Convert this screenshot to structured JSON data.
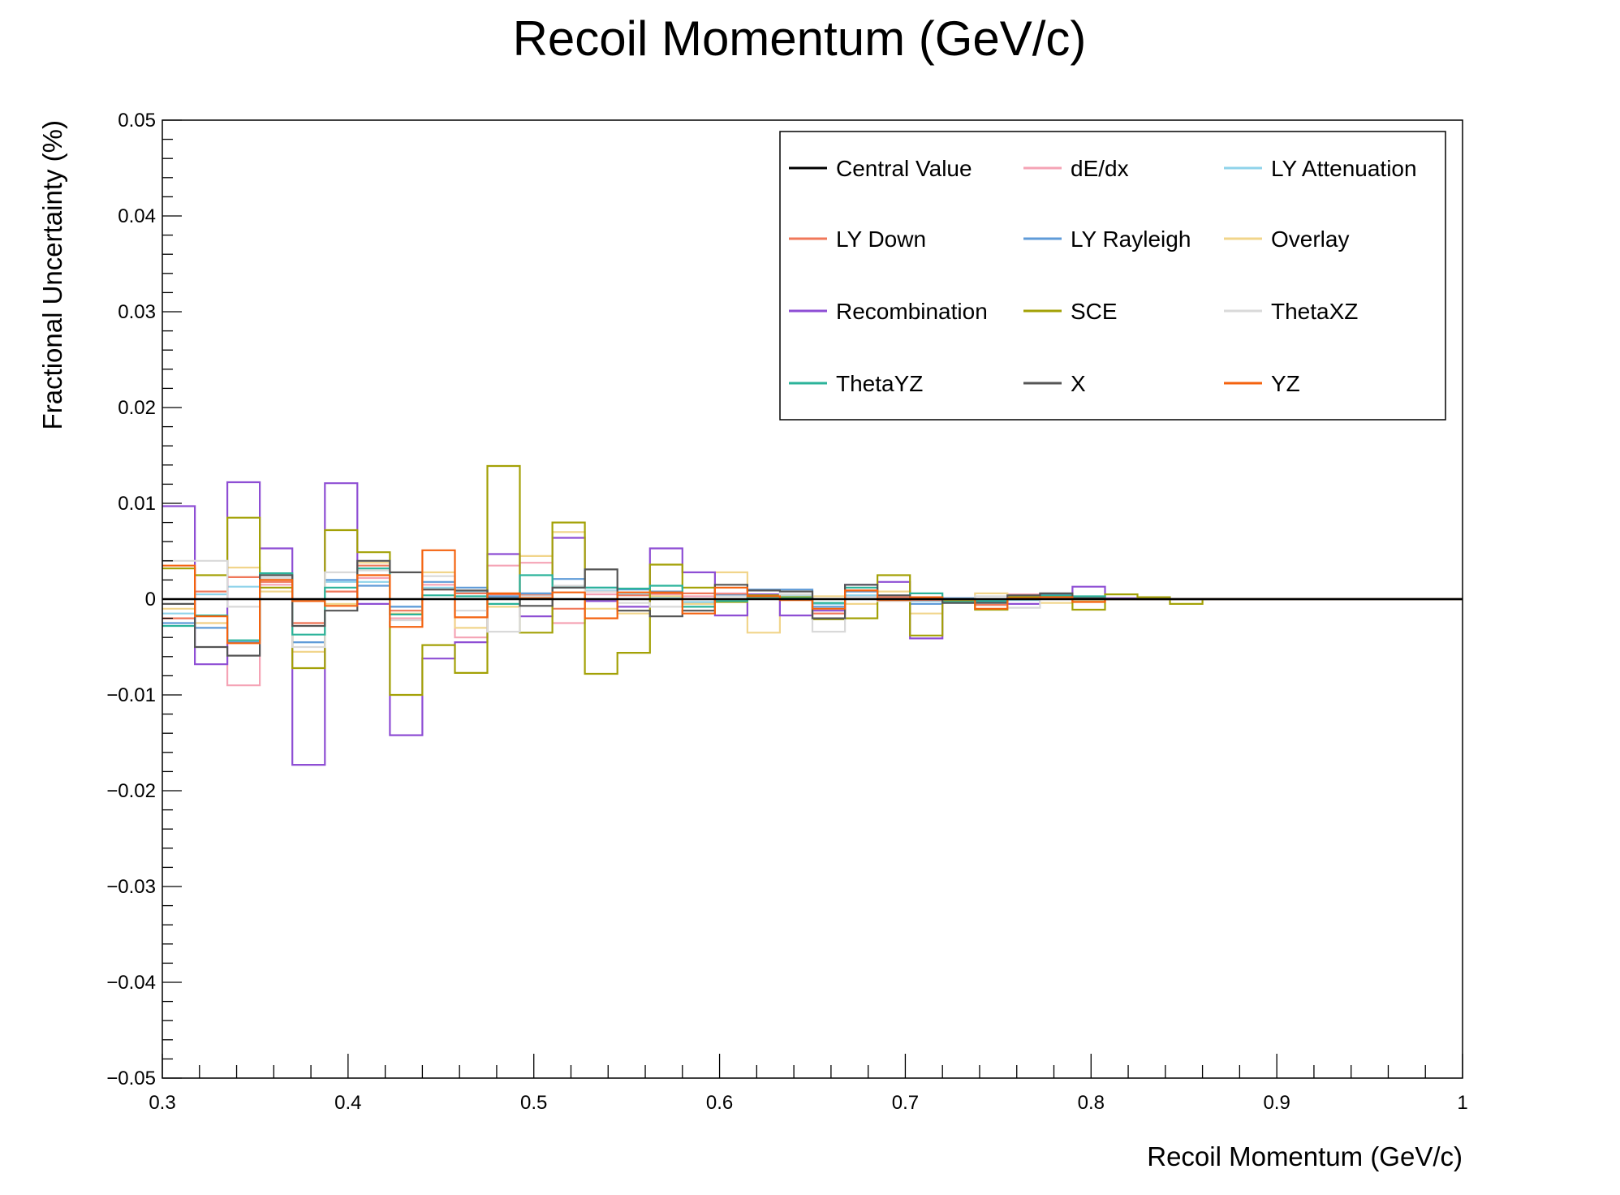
{
  "chart_data": {
    "type": "line",
    "title": "Recoil Momentum (GeV/c)",
    "xlabel": "Recoil Momentum (GeV/c)",
    "ylabel": "Fractional Uncertainty (%)",
    "xlim": [
      0.3,
      1.0
    ],
    "ylim": [
      -0.05,
      0.05
    ],
    "xticks": [
      0.3,
      0.4,
      0.5,
      0.6,
      0.7,
      0.8,
      0.9,
      1.0
    ],
    "xtick_labels": [
      "0.3",
      "0.4",
      "0.5",
      "0.6",
      "0.7",
      "0.8",
      "0.9",
      "1"
    ],
    "yticks": [
      -0.05,
      -0.04,
      -0.03,
      -0.02,
      -0.01,
      0,
      0.01,
      0.02,
      0.03,
      0.04,
      0.05
    ],
    "ytick_labels": [
      "−0.05",
      "−0.04",
      "−0.03",
      "−0.02",
      "−0.01",
      "0",
      "0.01",
      "0.02",
      "0.03",
      "0.04",
      "0.05"
    ],
    "grid": false,
    "legend_position": "top-right",
    "bin_edges": [
      0.3,
      0.3175,
      0.335,
      0.3525,
      0.37,
      0.3875,
      0.405,
      0.4225,
      0.44,
      0.4575,
      0.475,
      0.4925,
      0.51,
      0.5275,
      0.545,
      0.5625,
      0.58,
      0.5975,
      0.615,
      0.6325,
      0.65,
      0.6675,
      0.685,
      0.7025,
      0.72,
      0.7375,
      0.755,
      0.7725,
      0.79,
      0.8075,
      0.825,
      0.8425,
      0.86,
      0.8775,
      0.895,
      0.9125,
      0.93,
      0.9475,
      0.965,
      0.9825,
      1.0
    ],
    "series": [
      {
        "name": "Central Value",
        "color": "#000000",
        "values": [
          0,
          0,
          0,
          0,
          0,
          0,
          0,
          0,
          0,
          0,
          0,
          0,
          0,
          0,
          0,
          0,
          0,
          0,
          0,
          0,
          0,
          0,
          0,
          0,
          0,
          0,
          0,
          0,
          0,
          0,
          0,
          0,
          0,
          0,
          0,
          0,
          0,
          0,
          0,
          0
        ]
      },
      {
        "name": "dE/dx",
        "color": "#f5a3b5",
        "values": [
          -0.002,
          -0.0025,
          -0.009,
          0.0015,
          -0.0025,
          0.0008,
          0.0022,
          -0.002,
          0.0015,
          -0.004,
          0.0035,
          0.0038,
          -0.0025,
          0.0005,
          0.0005,
          0.0005,
          0.0003,
          0.0006,
          0.0004,
          0.0002,
          -0.0015,
          0.0003,
          0.0002,
          0.0001,
          0,
          0,
          0.0005,
          0.0002,
          0.0001,
          0,
          0,
          0,
          0,
          0,
          0,
          0,
          0,
          0,
          0,
          0
        ]
      },
      {
        "name": "LY Attenuation",
        "color": "#8fd3ea",
        "values": [
          -0.0015,
          0.0005,
          0.0013,
          0.0025,
          -0.0045,
          0.0018,
          0.0018,
          -0.0008,
          0.0012,
          0.0008,
          0.0002,
          0.0005,
          0.0012,
          0.0009,
          0.0005,
          0.0002,
          -0.0003,
          0.0005,
          0.0004,
          0.0003,
          -0.0005,
          0.0004,
          0.0002,
          -0.0002,
          -0.0004,
          -0.0002,
          -0.0001,
          0.0001,
          0.0001,
          0,
          0,
          0,
          0,
          0,
          0,
          0,
          0,
          0,
          0,
          0
        ]
      },
      {
        "name": "LY Down",
        "color": "#f0785a",
        "values": [
          -0.002,
          0.0008,
          0.0023,
          0.0018,
          -0.0025,
          0.0008,
          0.0035,
          -0.0012,
          0.001,
          0.0006,
          0.0005,
          0.0004,
          -0.001,
          0.0008,
          0.0004,
          0.0006,
          0.0006,
          0.0005,
          0.0005,
          0.0002,
          -0.0015,
          0.0009,
          0.0002,
          -0.0001,
          0,
          -0.0006,
          0,
          0.0003,
          0.0001,
          0,
          0,
          0,
          0,
          0,
          0,
          0,
          0,
          0,
          0,
          0
        ]
      },
      {
        "name": "LY Rayleigh",
        "color": "#5f9bd8",
        "values": [
          -0.0025,
          -0.003,
          -0.0045,
          0.0022,
          -0.0045,
          0.002,
          0.0014,
          -0.0008,
          0.0018,
          0.0012,
          0.0003,
          0.0006,
          0.0021,
          0.0012,
          0.001,
          0.0008,
          -0.0005,
          0.0004,
          0.001,
          0.001,
          -0.0008,
          0.0008,
          0,
          -0.0005,
          0.0001,
          -0.0003,
          0,
          0.0002,
          0.0001,
          0,
          0,
          0,
          0,
          0,
          0,
          0,
          0,
          0,
          0,
          0
        ]
      },
      {
        "name": "Overlay",
        "color": "#f1d58b",
        "values": [
          -0.001,
          -0.0025,
          0.0033,
          0.0008,
          -0.0055,
          -0.0005,
          0.0038,
          -0.0015,
          0.0028,
          -0.003,
          -0.0008,
          0.0045,
          0.007,
          -0.001,
          -0.0015,
          0.0003,
          -0.0005,
          0.0028,
          -0.0035,
          0.0005,
          0.0003,
          -0.0005,
          0.0008,
          -0.0015,
          -0.0003,
          0.0006,
          0.0003,
          -0.0004,
          -0.0002,
          0,
          0,
          0,
          0,
          0,
          0,
          0,
          0,
          0,
          0,
          0
        ]
      },
      {
        "name": "Recombination",
        "color": "#8e4ed4",
        "values": [
          0.0097,
          -0.0068,
          0.0122,
          0.0053,
          -0.0173,
          0.0121,
          -0.0005,
          -0.0142,
          -0.0062,
          -0.0045,
          0.0047,
          -0.0018,
          0.0064,
          -0.0002,
          -0.0008,
          0.0053,
          0.0028,
          -0.0017,
          0.0005,
          -0.0017,
          -0.0012,
          0.0015,
          0.0018,
          -0.0041,
          -0.0003,
          -0.0003,
          -0.0005,
          0.0005,
          0.0013,
          0.0001,
          0,
          0,
          0,
          0,
          0,
          0,
          0,
          0,
          0,
          0
        ]
      },
      {
        "name": "SCE",
        "color": "#a3a106",
        "values": [
          0.0032,
          0.0025,
          0.0085,
          0.0012,
          -0.0072,
          0.0072,
          0.0049,
          -0.01,
          -0.0048,
          -0.0077,
          0.0139,
          -0.0035,
          0.008,
          -0.0078,
          -0.0056,
          0.0036,
          0.0012,
          -0.0003,
          0.0004,
          0.0002,
          -0.0021,
          -0.002,
          0.0025,
          -0.0038,
          -0.0002,
          -0.0011,
          0.0002,
          0.0003,
          -0.0011,
          0.0005,
          0.0002,
          -0.0005,
          0,
          0,
          0,
          0,
          0,
          0,
          0,
          0
        ]
      },
      {
        "name": "ThetaXZ",
        "color": "#d9d9d9",
        "values": [
          0.004,
          0.004,
          -0.0008,
          0.0022,
          -0.005,
          0.0028,
          0.003,
          -0.0022,
          0.0024,
          -0.0012,
          -0.0034,
          0.0003,
          0.0014,
          0.0008,
          -0.0004,
          -0.0008,
          -0.0008,
          0.0003,
          0.0002,
          0.0005,
          -0.0034,
          0.0002,
          -0.0002,
          0.0002,
          -0.0003,
          0.0003,
          -0.0009,
          0.0002,
          0,
          0,
          0,
          0,
          0,
          0,
          0,
          0,
          0,
          0,
          0,
          0
        ]
      },
      {
        "name": "ThetaYZ",
        "color": "#2bb39a",
        "values": [
          -0.0028,
          -0.0017,
          -0.0043,
          0.0027,
          -0.0037,
          0.0012,
          0.0032,
          -0.0016,
          0.0004,
          0.0003,
          -0.0005,
          0.0025,
          0.0012,
          0.0012,
          0.0011,
          0.0014,
          -0.0008,
          -0.0002,
          0.0002,
          0.0001,
          -0.0004,
          0.0012,
          0,
          0.0006,
          -0.0003,
          -0.0002,
          0,
          0.0004,
          0.0003,
          0,
          0,
          0,
          0,
          0,
          0,
          0,
          0,
          0,
          0,
          0
        ]
      },
      {
        "name": "X",
        "color": "#555555",
        "values": [
          -0.0005,
          -0.005,
          -0.0059,
          0.0025,
          -0.0028,
          -0.0012,
          0.004,
          0.0028,
          0.001,
          0.0009,
          0.0001,
          -0.0007,
          0.0012,
          0.0031,
          -0.0012,
          -0.0018,
          -0.0012,
          0.0015,
          0.0009,
          0.0008,
          -0.002,
          0.0015,
          0.0004,
          0.0001,
          -0.0004,
          -0.0004,
          0.0004,
          0.0006,
          0.0001,
          0,
          0,
          0,
          0,
          0,
          0,
          0,
          0,
          0,
          0,
          0
        ]
      },
      {
        "name": "YZ",
        "color": "#f4620e",
        "values": [
          0.0035,
          -0.0018,
          -0.0046,
          0.002,
          -0.0002,
          -0.0007,
          0.0025,
          -0.0029,
          0.0051,
          -0.0019,
          0.0006,
          0.0001,
          0.0007,
          -0.002,
          0.0007,
          0.0007,
          -0.0015,
          0.0012,
          0.0003,
          -0.0001,
          -0.001,
          0.0009,
          -0.0001,
          0.0002,
          0,
          -0.001,
          0.0001,
          0.0002,
          -0.0003,
          0,
          0,
          0,
          0,
          0,
          0,
          0,
          0,
          0,
          0,
          0
        ]
      }
    ]
  }
}
